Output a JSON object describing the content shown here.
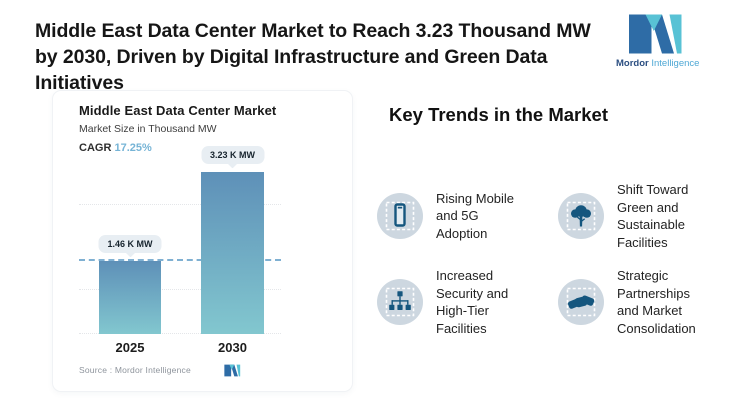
{
  "header": {
    "title": "Middle East Data Center Market to Reach 3.23 Thousand MW by 2030, Driven by Digital Infrastructure and Green Data Initiatives",
    "logo": {
      "brand_bold": "Mordor",
      "brand_light": "Intelligence"
    }
  },
  "chart_card": {
    "title": "Middle East Data Center Market",
    "subtitle": "Market Size in Thousand MW",
    "cagr_label": "CAGR",
    "cagr_value": "17.25%",
    "source": "Source : Mordor Intelligence"
  },
  "chart_data": {
    "type": "bar",
    "title": "Middle East Data Center Market",
    "ylabel": "Market Size in Thousand MW",
    "categories": [
      "2025",
      "2030"
    ],
    "values": [
      1.46,
      3.23
    ],
    "value_labels": [
      "1.46 K MW",
      "3.23 K MW"
    ],
    "cagr": "17.25%",
    "ylim": [
      0,
      3.23
    ],
    "grid": "horizontal-dotted",
    "reference_line": 1.46,
    "bar_color_top": "#5e90b8",
    "bar_color_bottom": "#82c7cf",
    "dashed_line_color": "#7fb0d2",
    "label_pill_color": "#e8eef3"
  },
  "trends": {
    "heading": "Key Trends in the Market",
    "items": [
      {
        "icon": "mobile-5g-icon",
        "label": "Rising Mobile and 5G Adoption"
      },
      {
        "icon": "green-tree-icon",
        "label": "Shift Toward Green and Sustainable Facilities"
      },
      {
        "icon": "hierarchy-icon",
        "label": "Increased Security and High-Tier Facilities"
      },
      {
        "icon": "handshake-icon",
        "label": "Strategic Partnerships and Market Consolidation"
      }
    ]
  },
  "colors": {
    "icon_glyph": "#15567e",
    "icon_circle": "#cdd7e0",
    "logo_dark": "#2e6ca6",
    "logo_teal": "#58c2d5"
  }
}
